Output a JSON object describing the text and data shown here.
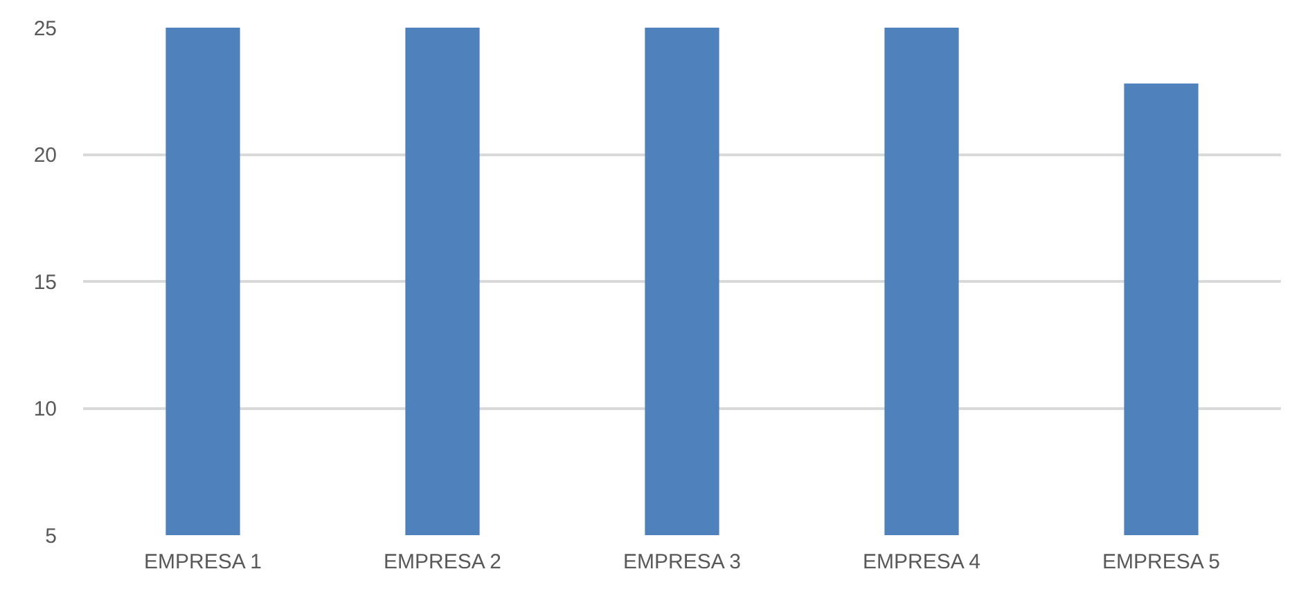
{
  "chart_data": {
    "type": "bar",
    "categories": [
      "EMPRESA 1",
      "EMPRESA 2",
      "EMPRESA 3",
      "EMPRESA 4",
      "EMPRESA 5"
    ],
    "values": [
      25,
      25,
      25,
      25,
      22.8
    ],
    "color": "#4f81bd",
    "ylim": [
      5,
      25
    ],
    "yticks": [
      5,
      10,
      15,
      20,
      25
    ],
    "grid": "y"
  }
}
